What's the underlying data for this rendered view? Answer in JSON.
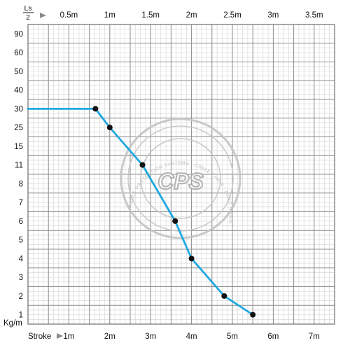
{
  "chart_data": {
    "type": "line",
    "top_axis": {
      "label_top": "Ls",
      "label_bottom": "2",
      "ticks": [
        "0.5m",
        "1m",
        "1.5m",
        "2m",
        "2.5m",
        "3m",
        "3.5m"
      ]
    },
    "bottom_axis": {
      "label": "Stroke",
      "ticks": [
        "1m",
        "2m",
        "3m",
        "4m",
        "5m",
        "6m",
        "7m"
      ]
    },
    "y_axis": {
      "unit": "Kg/m",
      "ticks": [
        "90",
        "60",
        "50",
        "40",
        "30",
        "25",
        "15",
        "11",
        "8",
        "7",
        "6",
        "5",
        "4",
        "3",
        "2",
        "1"
      ]
    },
    "xlim": [
      0,
      7.5
    ],
    "series": [
      {
        "color": "#1ea8e0",
        "points": [
          {
            "x": 0,
            "y": "30"
          },
          {
            "x": 1.65,
            "y": "30"
          },
          {
            "x": 2.0,
            "y": "25"
          },
          {
            "x": 2.8,
            "y": "11"
          },
          {
            "x": 3.6,
            "y": "6"
          },
          {
            "x": 4.0,
            "y": "4"
          },
          {
            "x": 4.8,
            "y": "2"
          },
          {
            "x": 5.5,
            "y": "1"
          }
        ]
      }
    ],
    "grid": true,
    "watermark": {
      "logo": "CPS",
      "ring_text": "CABLE PROTECTION SYSTEMS · CABLE CHAIN · DRAG CHAIN ·"
    }
  }
}
